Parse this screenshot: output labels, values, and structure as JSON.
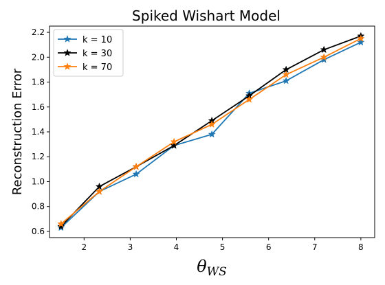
{
  "chart_data": {
    "type": "line",
    "title": "Spiked Wishart Model",
    "xlabel_main": "θ",
    "xlabel_sub": "WS",
    "ylabel": "Reconstruction Error",
    "x": [
      1.5,
      2.33,
      3.13,
      3.95,
      4.77,
      5.58,
      6.38,
      7.2,
      8.0
    ],
    "xlim": [
      1.25,
      8.3
    ],
    "ylim": [
      0.55,
      2.25
    ],
    "xticks": [
      2,
      3,
      4,
      5,
      6,
      7,
      8
    ],
    "xtick_labels": [
      "2",
      "3",
      "4",
      "5",
      "6",
      "7",
      "8"
    ],
    "yticks": [
      0.6,
      0.8,
      1.0,
      1.2,
      1.4,
      1.6,
      1.8,
      2.0,
      2.2
    ],
    "ytick_labels": [
      "0.6",
      "0.8",
      "1.0",
      "1.2",
      "1.4",
      "1.6",
      "1.8",
      "2.0",
      "2.2"
    ],
    "grid": false,
    "legend_position": "top-left",
    "series": [
      {
        "name": "k = 10",
        "color": "#1f77b4",
        "values": [
          0.63,
          0.92,
          1.06,
          1.29,
          1.38,
          1.71,
          1.81,
          1.98,
          2.12
        ]
      },
      {
        "name": "k = 30",
        "color": "#000000",
        "values": [
          0.64,
          0.96,
          1.12,
          1.29,
          1.49,
          1.69,
          1.9,
          2.06,
          2.17
        ]
      },
      {
        "name": "k = 70",
        "color": "#ff7f0e",
        "values": [
          0.66,
          0.92,
          1.12,
          1.32,
          1.46,
          1.66,
          1.86,
          2.0,
          2.15
        ]
      }
    ]
  }
}
